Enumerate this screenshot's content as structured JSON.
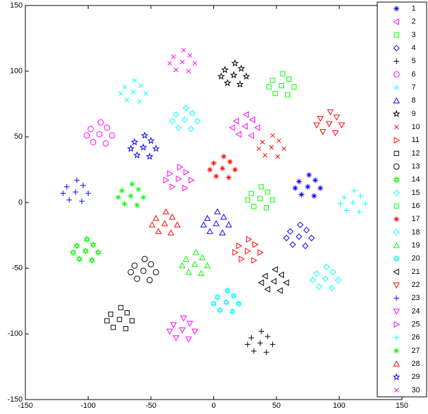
{
  "chart_data": {
    "type": "scatter",
    "xlim": [
      -150,
      150
    ],
    "xticks": [
      -150,
      -100,
      -50,
      0,
      50,
      100,
      150
    ],
    "ylim": [
      -150,
      150
    ],
    "yticks": [
      -150,
      -100,
      -50,
      0,
      50,
      100,
      150
    ],
    "series": [
      {
        "name": "1",
        "color": "#0000ff",
        "marker": "asterisk",
        "x": [
          75,
          81,
          68,
          80,
          70,
          85,
          65,
          76
        ],
        "y": [
          12,
          17,
          16,
          5,
          6,
          11,
          11,
          21
        ]
      },
      {
        "name": "2",
        "color": "#ff00ff",
        "marker": "triangle-left",
        "x": [
          25,
          31,
          18,
          30,
          20,
          35,
          15,
          26
        ],
        "y": [
          58,
          63,
          62,
          51,
          52,
          57,
          57,
          67
        ]
      },
      {
        "name": "3",
        "color": "#00ff00",
        "marker": "square",
        "x": [
          54,
          60,
          47,
          59,
          49,
          64,
          44,
          55
        ],
        "y": [
          89,
          94,
          93,
          82,
          83,
          88,
          88,
          98
        ]
      },
      {
        "name": "4",
        "color": "#0000ff",
        "marker": "diamond",
        "x": [
          68,
          74,
          61,
          73,
          63,
          78,
          58,
          69
        ],
        "y": [
          -26,
          -21,
          -22,
          -33,
          -32,
          -27,
          -27,
          -17
        ]
      },
      {
        "name": "5",
        "color": "#000000",
        "marker": "plus",
        "x": [
          37,
          43,
          30,
          42,
          32,
          47,
          27,
          38
        ],
        "y": [
          -107,
          -102,
          -103,
          -114,
          -113,
          -108,
          -108,
          -98
        ]
      },
      {
        "name": "6",
        "color": "#ff00ff",
        "marker": "circle",
        "x": [
          -91,
          -85,
          -98,
          -86,
          -96,
          -81,
          -101,
          -90
        ],
        "y": [
          52,
          57,
          56,
          45,
          46,
          51,
          51,
          61
        ]
      },
      {
        "name": "7",
        "color": "#00ffff",
        "marker": "x",
        "x": [
          -64,
          -58,
          -71,
          -59,
          -69,
          -54,
          -74,
          -63
        ],
        "y": [
          84,
          89,
          88,
          77,
          78,
          83,
          83,
          93
        ]
      },
      {
        "name": "8",
        "color": "#0000ff",
        "marker": "triangle-up",
        "x": [
          2,
          8,
          -5,
          7,
          -3,
          12,
          -8,
          3
        ],
        "y": [
          -16,
          -11,
          -12,
          -23,
          -22,
          -17,
          -17,
          -7
        ]
      },
      {
        "name": "9",
        "color": "#000000",
        "marker": "star",
        "x": [
          16,
          22,
          9,
          21,
          11,
          26,
          6,
          17
        ],
        "y": [
          97,
          102,
          101,
          90,
          91,
          96,
          96,
          106
        ]
      },
      {
        "name": "10",
        "color": "#ff0000",
        "marker": "x",
        "x": [
          46,
          52,
          39,
          51,
          41,
          56,
          36,
          47
        ],
        "y": [
          42,
          47,
          46,
          35,
          36,
          41,
          41,
          51
        ]
      },
      {
        "name": "11",
        "color": "#ff0000",
        "marker": "triangle-right",
        "x": [
          27,
          33,
          20,
          32,
          22,
          37,
          17,
          28
        ],
        "y": [
          -37,
          -32,
          -33,
          -44,
          -43,
          -38,
          -38,
          -28
        ]
      },
      {
        "name": "12",
        "color": "#000000",
        "marker": "square",
        "x": [
          -75,
          -69,
          -82,
          -70,
          -80,
          -65,
          -85,
          -74
        ],
        "y": [
          -89,
          -84,
          -85,
          -96,
          -95,
          -90,
          -90,
          -80
        ]
      },
      {
        "name": "13",
        "color": "#000000",
        "marker": "circle",
        "x": [
          -56,
          -50,
          -63,
          -51,
          -61,
          -46,
          -66,
          -55
        ],
        "y": [
          -52,
          -47,
          -48,
          -59,
          -58,
          -53,
          -53,
          -43
        ]
      },
      {
        "name": "14",
        "color": "#00ff00",
        "marker": "hexagram",
        "x": [
          -102,
          -96,
          -109,
          -97,
          -107,
          -92,
          -112,
          -101
        ],
        "y": [
          -37,
          -32,
          -33,
          -44,
          -43,
          -38,
          -38,
          -28
        ]
      },
      {
        "name": "15",
        "color": "#00ffff",
        "marker": "diamond",
        "x": [
          -23,
          -17,
          -30,
          -18,
          -28,
          -13,
          -33,
          -22
        ],
        "y": [
          63,
          68,
          67,
          56,
          57,
          62,
          62,
          72
        ]
      },
      {
        "name": "16",
        "color": "#00ff00",
        "marker": "square",
        "x": [
          37,
          43,
          30,
          42,
          32,
          47,
          27,
          38
        ],
        "y": [
          3,
          8,
          7,
          -4,
          -3,
          2,
          2,
          12
        ]
      },
      {
        "name": "17",
        "color": "#ff0000",
        "marker": "asterisk",
        "x": [
          7,
          13,
          0,
          12,
          2,
          17,
          -3,
          8
        ],
        "y": [
          26,
          31,
          30,
          19,
          20,
          25,
          25,
          35
        ]
      },
      {
        "name": "18",
        "color": "#00ffff",
        "marker": "diamond",
        "x": [
          89,
          95,
          82,
          94,
          84,
          99,
          79,
          90
        ],
        "y": [
          -58,
          -53,
          -54,
          -65,
          -64,
          -59,
          -59,
          -49
        ]
      },
      {
        "name": "19",
        "color": "#00ff00",
        "marker": "triangle-up",
        "x": [
          -15,
          -9,
          -22,
          -10,
          -20,
          -5,
          -25,
          -14
        ],
        "y": [
          -47,
          -42,
          -43,
          -54,
          -53,
          -48,
          -48,
          -38
        ]
      },
      {
        "name": "20",
        "color": "#00ffff",
        "marker": "hexagram",
        "x": [
          10,
          16,
          3,
          15,
          5,
          20,
          0,
          11
        ],
        "y": [
          -76,
          -71,
          -72,
          -83,
          -82,
          -77,
          -77,
          -67
        ]
      },
      {
        "name": "21",
        "color": "#000000",
        "marker": "triangle-left",
        "x": [
          48,
          54,
          41,
          53,
          43,
          58,
          38,
          49
        ],
        "y": [
          -60,
          -55,
          -56,
          -67,
          -66,
          -61,
          -61,
          -51
        ]
      },
      {
        "name": "22",
        "color": "#ff0000",
        "marker": "triangle-down",
        "x": [
          92,
          98,
          85,
          97,
          87,
          102,
          82,
          93
        ],
        "y": [
          60,
          65,
          64,
          53,
          54,
          59,
          59,
          69
        ]
      },
      {
        "name": "23",
        "color": "#0000ff",
        "marker": "plus",
        "x": [
          -110,
          -104,
          -117,
          -105,
          -115,
          -100,
          -120,
          -109
        ],
        "y": [
          8,
          13,
          12,
          1,
          2,
          7,
          7,
          17
        ]
      },
      {
        "name": "24",
        "color": "#ff00ff",
        "marker": "triangle-down",
        "x": [
          -25,
          -19,
          -32,
          -20,
          -30,
          -15,
          -35,
          -24
        ],
        "y": [
          -97,
          -92,
          -93,
          -104,
          -103,
          -98,
          -98,
          -88
        ]
      },
      {
        "name": "25",
        "color": "#ff00ff",
        "marker": "triangle-right",
        "x": [
          -28,
          -22,
          -35,
          -23,
          -33,
          -18,
          -38,
          -27
        ],
        "y": [
          18,
          23,
          22,
          11,
          12,
          17,
          17,
          27
        ]
      },
      {
        "name": "26",
        "color": "#00ffff",
        "marker": "plus",
        "x": [
          111,
          117,
          104,
          116,
          106,
          121,
          101,
          112
        ],
        "y": [
          0,
          5,
          4,
          -7,
          -6,
          -1,
          -1,
          9
        ]
      },
      {
        "name": "27",
        "color": "#00ff00",
        "marker": "asterisk",
        "x": [
          -66,
          -60,
          -73,
          -61,
          -71,
          -56,
          -76,
          -65
        ],
        "y": [
          5,
          10,
          9,
          -2,
          -1,
          4,
          4,
          14
        ]
      },
      {
        "name": "28",
        "color": "#ff0000",
        "marker": "triangle-up",
        "x": [
          -39,
          -33,
          -46,
          -34,
          -44,
          -29,
          -49,
          -38
        ],
        "y": [
          -16,
          -11,
          -12,
          -23,
          -22,
          -17,
          -17,
          -7
        ]
      },
      {
        "name": "29",
        "color": "#0000ff",
        "marker": "star",
        "x": [
          -56,
          -50,
          -63,
          -51,
          -61,
          -46,
          -66,
          -55
        ],
        "y": [
          42,
          47,
          46,
          35,
          36,
          41,
          41,
          51
        ]
      },
      {
        "name": "30",
        "color": "#ff00ff",
        "marker": "x",
        "x": [
          -25,
          -19,
          -32,
          -20,
          -30,
          -15,
          -35,
          -24
        ],
        "y": [
          107,
          112,
          111,
          100,
          101,
          106,
          106,
          116
        ]
      }
    ]
  }
}
